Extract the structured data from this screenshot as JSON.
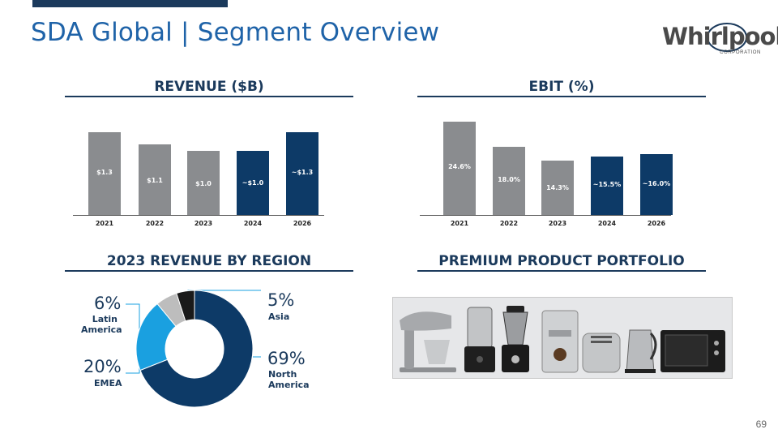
{
  "slide": {
    "title": "SDA Global | Segment Overview",
    "page_number": "69",
    "logo": {
      "brand": "Whirlpool",
      "sub": "CORPORATION"
    }
  },
  "sections": {
    "revenue_title": "REVENUE ($B)",
    "ebit_title": "EBIT (%)",
    "region_title": "2023 REVENUE BY REGION",
    "portfolio_title": "PREMIUM PRODUCT PORTFOLIO"
  },
  "chart_data": [
    {
      "type": "bar",
      "title": "REVENUE ($B)",
      "categories": [
        "2021",
        "2022",
        "2023",
        "2024",
        "2026"
      ],
      "values": [
        1.3,
        1.1,
        1.0,
        1.0,
        1.3
      ],
      "data_labels": [
        "$1.3",
        "$1.1",
        "$1.0",
        "~$1.0",
        "~$1.3"
      ],
      "colors": [
        "#8a8c8f",
        "#8a8c8f",
        "#8a8c8f",
        "#0d3a67",
        "#0d3a67"
      ],
      "ylim": [
        0,
        1.6
      ]
    },
    {
      "type": "bar",
      "title": "EBIT (%)",
      "categories": [
        "2021",
        "2022",
        "2023",
        "2024",
        "2026"
      ],
      "values": [
        24.6,
        18.0,
        14.3,
        15.5,
        16.0
      ],
      "data_labels": [
        "24.6%",
        "18.0%",
        "14.3%",
        "~15.5%",
        "~16.0%"
      ],
      "colors": [
        "#8a8c8f",
        "#8a8c8f",
        "#8a8c8f",
        "#0d3a67",
        "#0d3a67"
      ],
      "ylim": [
        0,
        25.5
      ]
    },
    {
      "type": "pie",
      "title": "2023 REVENUE BY REGION",
      "labels": [
        "North America",
        "EMEA",
        "Latin America",
        "Asia"
      ],
      "values": [
        69,
        20,
        6,
        5
      ],
      "colors": [
        "#0d3a67",
        "#1aa0e0",
        "#bdbdbd",
        "#1a1a1a"
      ]
    }
  ],
  "region_labels": {
    "latin": {
      "pct": "6%",
      "name_1": "Latin",
      "name_2": "America"
    },
    "emea": {
      "pct": "20%",
      "name": "EMEA"
    },
    "asia": {
      "pct": "5%",
      "name": "Asia"
    },
    "na": {
      "pct": "69%",
      "name_1": "North",
      "name_2": "America"
    }
  },
  "products": [
    "stand-mixer",
    "food-processor",
    "blender",
    "espresso-machine",
    "toaster",
    "kettle",
    "toaster-oven"
  ]
}
